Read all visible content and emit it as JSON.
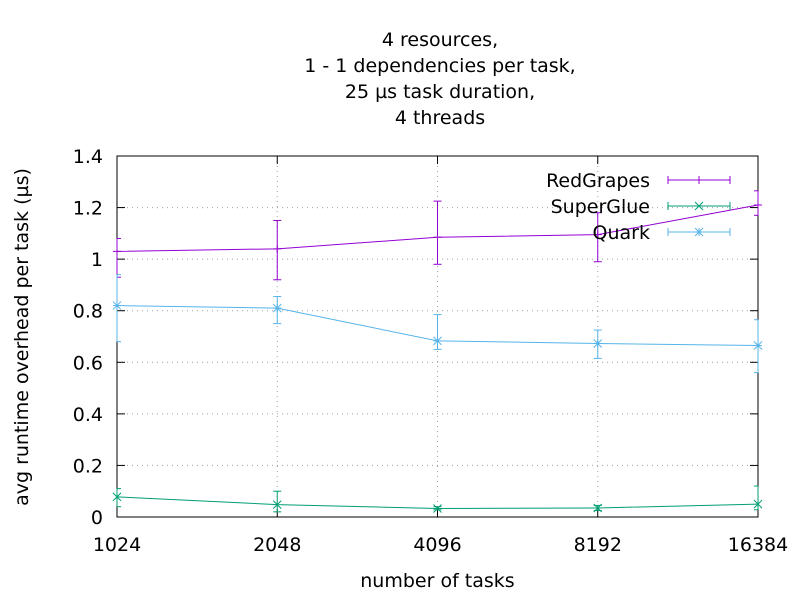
{
  "chart_data": {
    "type": "line",
    "title_lines": [
      "4 resources,",
      "1 - 1 dependencies per task,",
      "25 µs task duration,",
      "4 threads"
    ],
    "xlabel": "number of tasks",
    "ylabel": "avg runtime overhead per task (µs)",
    "x_scale": "log2",
    "x": [
      1024,
      2048,
      4096,
      8192,
      16384
    ],
    "xticks": [
      "1024",
      "2048",
      "4096",
      "8192",
      "16384"
    ],
    "ylim": [
      0,
      1.4
    ],
    "yticks": [
      "0",
      "0.2",
      "0.4",
      "0.6",
      "0.8",
      "1",
      "1.2",
      "1.4"
    ],
    "grid": true,
    "legend_position": "top-right",
    "series": [
      {
        "name": "RedGrapes",
        "color": "#9400d3",
        "marker": "plus",
        "values": [
          1.03,
          1.04,
          1.085,
          1.095,
          1.21
        ],
        "err_low": [
          0.93,
          0.92,
          0.98,
          0.99,
          1.17
        ],
        "err_high": [
          1.08,
          1.15,
          1.225,
          1.18,
          1.265
        ]
      },
      {
        "name": "SuperGlue",
        "color": "#009e73",
        "marker": "cross",
        "values": [
          0.078,
          0.048,
          0.033,
          0.035,
          0.05
        ],
        "err_low": [
          0.04,
          0.02,
          0.028,
          0.025,
          0.028
        ],
        "err_high": [
          0.11,
          0.1,
          0.04,
          0.045,
          0.12
        ]
      },
      {
        "name": "Quark",
        "color": "#56b4e9",
        "marker": "star",
        "values": [
          0.82,
          0.81,
          0.683,
          0.673,
          0.665
        ],
        "err_low": [
          0.68,
          0.75,
          0.65,
          0.615,
          0.56
        ],
        "err_high": [
          0.94,
          0.855,
          0.785,
          0.725,
          0.765
        ]
      }
    ]
  }
}
